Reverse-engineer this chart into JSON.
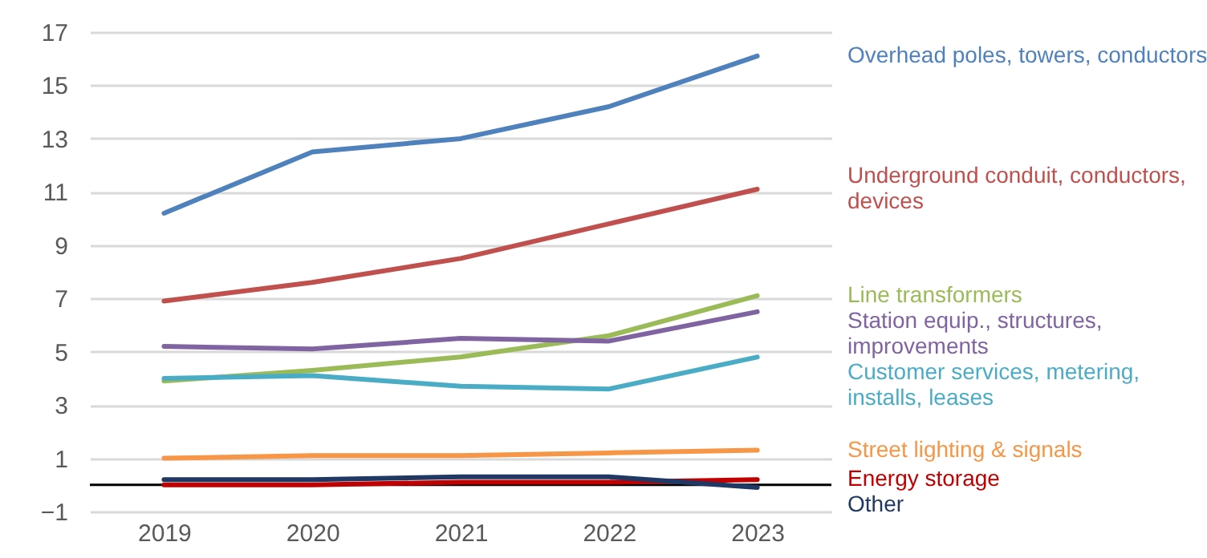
{
  "chart_data": {
    "type": "line",
    "categories": [
      "2019",
      "2020",
      "2021",
      "2022",
      "2023"
    ],
    "ylim": [
      -1,
      17
    ],
    "yticks": [
      -1,
      1,
      3,
      5,
      7,
      9,
      11,
      13,
      15,
      17
    ],
    "grid": "y",
    "legend": false,
    "ref_lines": [
      {
        "axis": "y",
        "value": 0,
        "color": "#000000"
      }
    ],
    "series": [
      {
        "name": "Overhead poles, towers, conductors",
        "color": "#4f81bd",
        "values": [
          10.2,
          12.5,
          13.0,
          14.2,
          16.1
        ]
      },
      {
        "name": "Underground conduit, conductors, devices",
        "color": "#c0504d",
        "values": [
          6.9,
          7.6,
          8.5,
          9.8,
          11.1
        ]
      },
      {
        "name": "Line transformers",
        "color": "#9bbb59",
        "values": [
          3.9,
          4.3,
          4.8,
          5.6,
          7.1
        ]
      },
      {
        "name": "Station equip., structures, improvements",
        "color": "#8064a2",
        "values": [
          5.2,
          5.1,
          5.5,
          5.4,
          6.5
        ]
      },
      {
        "name": "Customer services, metering, installs, leases",
        "color": "#4bacc6",
        "values": [
          4.0,
          4.1,
          3.7,
          3.6,
          4.8
        ]
      },
      {
        "name": "Street lighting & signals",
        "color": "#f79646",
        "values": [
          1.0,
          1.1,
          1.1,
          1.2,
          1.3
        ]
      },
      {
        "name": "Energy storage",
        "color": "#c00000",
        "values": [
          0.0,
          0.0,
          0.1,
          0.1,
          0.2
        ]
      },
      {
        "name": "Other",
        "color": "#1f3864",
        "values": [
          0.2,
          0.2,
          0.3,
          0.3,
          -0.1
        ]
      }
    ]
  }
}
